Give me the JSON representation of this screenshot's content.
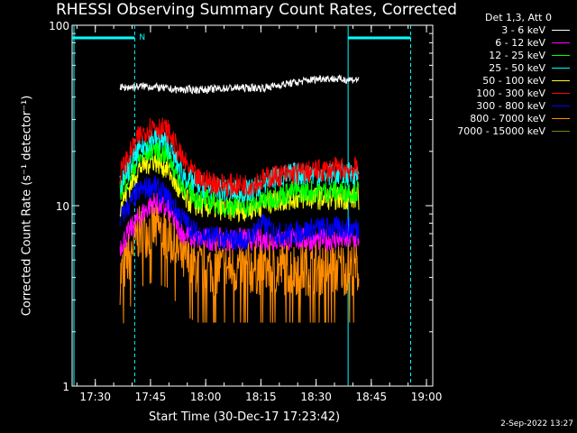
{
  "chart_data": {
    "type": "line",
    "title": "RHESSI Observing Summary Count Rates, Corrected",
    "xlabel": "Start Time (30-Dec-17 17:23:42)",
    "ylabel": "Corrected Count Rate (s⁻¹ detector⁻¹)",
    "yscale": "log",
    "ylim": [
      1,
      100
    ],
    "xlim_minutes": [
      0,
      98
    ],
    "x_ticks": [
      "17:30",
      "17:45",
      "18:00",
      "18:15",
      "18:30",
      "18:45",
      "19:00"
    ],
    "y_ticks": [
      "1",
      "10",
      "100"
    ],
    "legend_header": "Det 1,3, Att 0",
    "legend_position": "top-right",
    "grid": false,
    "annotations": [
      "N"
    ],
    "series": [
      {
        "name": "3 - 6 keV",
        "color": "#ffffff",
        "points": [
          [
            13,
            45
          ],
          [
            20,
            46
          ],
          [
            28,
            44
          ],
          [
            36,
            44
          ],
          [
            44,
            45
          ],
          [
            52,
            45
          ],
          [
            60,
            48
          ],
          [
            68,
            51
          ],
          [
            74,
            50
          ],
          [
            78,
            50
          ]
        ]
      },
      {
        "name": "6 - 12 keV",
        "color": "#ff00ff",
        "points": [
          [
            13,
            6
          ],
          [
            18,
            8.5
          ],
          [
            22,
            10.5
          ],
          [
            26,
            9.5
          ],
          [
            30,
            7
          ],
          [
            34,
            6.5
          ],
          [
            42,
            6.5
          ],
          [
            48,
            6.5
          ],
          [
            54,
            6.5
          ],
          [
            60,
            6.5
          ],
          [
            66,
            6.5
          ],
          [
            72,
            6.5
          ],
          [
            78,
            6.5
          ]
        ]
      },
      {
        "name": "12 - 25 keV",
        "color": "#00ff00",
        "points": [
          [
            13,
            12
          ],
          [
            18,
            18
          ],
          [
            22,
            21
          ],
          [
            26,
            19
          ],
          [
            30,
            13
          ],
          [
            34,
            11
          ],
          [
            42,
            10
          ],
          [
            48,
            10
          ],
          [
            54,
            11
          ],
          [
            60,
            12
          ],
          [
            66,
            12
          ],
          [
            72,
            12
          ],
          [
            78,
            12
          ]
        ]
      },
      {
        "name": "25 - 50 keV",
        "color": "#00ffff",
        "points": [
          [
            13,
            13
          ],
          [
            18,
            20
          ],
          [
            22,
            24
          ],
          [
            26,
            22
          ],
          [
            30,
            15
          ],
          [
            34,
            13
          ],
          [
            42,
            12
          ],
          [
            48,
            12
          ],
          [
            54,
            14
          ],
          [
            60,
            15
          ],
          [
            66,
            15
          ],
          [
            72,
            15
          ],
          [
            78,
            15
          ]
        ]
      },
      {
        "name": "50 - 100 keV",
        "color": "#ffff00",
        "points": [
          [
            13,
            10
          ],
          [
            18,
            16
          ],
          [
            22,
            18
          ],
          [
            26,
            16
          ],
          [
            30,
            11
          ],
          [
            34,
            10
          ],
          [
            42,
            9.5
          ],
          [
            48,
            9.5
          ],
          [
            54,
            10.5
          ],
          [
            60,
            11
          ],
          [
            66,
            11
          ],
          [
            72,
            11
          ],
          [
            78,
            11
          ]
        ]
      },
      {
        "name": "100 - 300 keV",
        "color": "#ff0000",
        "points": [
          [
            13,
            15
          ],
          [
            18,
            24
          ],
          [
            22,
            28
          ],
          [
            26,
            26
          ],
          [
            30,
            18
          ],
          [
            34,
            14
          ],
          [
            42,
            13
          ],
          [
            48,
            13
          ],
          [
            54,
            14.5
          ],
          [
            60,
            15
          ],
          [
            66,
            15.5
          ],
          [
            72,
            16
          ],
          [
            78,
            16
          ]
        ]
      },
      {
        "name": "300 - 800 keV",
        "color": "#0000ff",
        "points": [
          [
            13,
            8.5
          ],
          [
            18,
            12
          ],
          [
            22,
            13
          ],
          [
            26,
            11
          ],
          [
            30,
            8.5
          ],
          [
            34,
            7
          ],
          [
            42,
            6.5
          ],
          [
            48,
            6.5
          ],
          [
            51,
            8
          ],
          [
            56,
            7
          ],
          [
            60,
            7
          ],
          [
            66,
            7.5
          ],
          [
            72,
            7.5
          ],
          [
            78,
            7.5
          ]
        ]
      },
      {
        "name": "800 - 7000 keV",
        "color": "#ff8c00",
        "points": [
          [
            13,
            4
          ],
          [
            18,
            7
          ],
          [
            22,
            7.5
          ],
          [
            26,
            7
          ],
          [
            30,
            5
          ],
          [
            34,
            4.5
          ],
          [
            42,
            4.5
          ],
          [
            48,
            4.5
          ],
          [
            54,
            4.5
          ],
          [
            60,
            4.5
          ],
          [
            66,
            4.5
          ],
          [
            72,
            4.5
          ],
          [
            78,
            4.5
          ]
        ]
      },
      {
        "name": "7000 - 15000 keV",
        "color": "#808000",
        "points": []
      }
    ]
  },
  "footer": {
    "datestamp": "2-Sep-2022 13:27"
  }
}
